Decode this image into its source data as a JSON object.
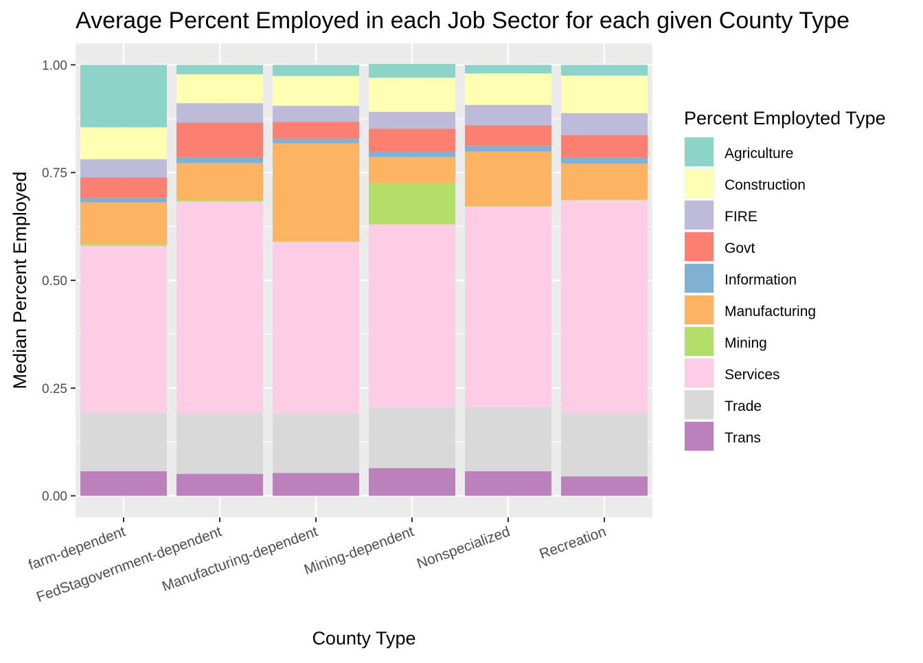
{
  "chart_data": {
    "type": "bar",
    "stacked": true,
    "title": "Average Percent Employed in each Job Sector for each given County Type",
    "xlabel": "County Type",
    "ylabel": "Median Percent Employed",
    "ylim": [
      -0.05,
      1.05
    ],
    "yticks": [
      0.0,
      0.25,
      0.5,
      0.75,
      1.0
    ],
    "ytick_labels": [
      "0.00",
      "0.25",
      "0.50",
      "0.75",
      "1.00"
    ],
    "categories": [
      "farm-dependent",
      "FedStagovernment-dependent",
      "Manufacturing-dependent",
      "Mining-dependent",
      "Nonspecialized",
      "Recreation"
    ],
    "grid": true,
    "legend": {
      "title": "Percent Employted Type",
      "position": "right"
    },
    "series": [
      {
        "name": "Agriculture",
        "color": "#8DD3C7",
        "values": [
          0.145,
          0.022,
          0.026,
          0.032,
          0.02,
          0.025
        ]
      },
      {
        "name": "Construction",
        "color": "#FFFFB3",
        "values": [
          0.074,
          0.067,
          0.069,
          0.079,
          0.073,
          0.087
        ]
      },
      {
        "name": "FIRE",
        "color": "#BEBADA",
        "values": [
          0.042,
          0.045,
          0.037,
          0.039,
          0.047,
          0.051
        ]
      },
      {
        "name": "Govt",
        "color": "#FB8072",
        "values": [
          0.048,
          0.08,
          0.039,
          0.054,
          0.048,
          0.052
        ]
      },
      {
        "name": "Information",
        "color": "#80B1D3",
        "values": [
          0.01,
          0.014,
          0.011,
          0.012,
          0.013,
          0.014
        ]
      },
      {
        "name": "Manufacturing",
        "color": "#FDB462",
        "values": [
          0.097,
          0.086,
          0.227,
          0.061,
          0.127,
          0.083
        ]
      },
      {
        "name": "Mining",
        "color": "#B3DE69",
        "values": [
          0.004,
          0.003,
          0.002,
          0.095,
          0.001,
          0.002
        ]
      },
      {
        "name": "Services",
        "color": "#FCCDE5",
        "values": [
          0.387,
          0.491,
          0.397,
          0.425,
          0.465,
          0.494
        ]
      },
      {
        "name": "Trade",
        "color": "#D9D9D9",
        "values": [
          0.136,
          0.141,
          0.139,
          0.141,
          0.149,
          0.147
        ]
      },
      {
        "name": "Trans",
        "color": "#BC80BD",
        "values": [
          0.057,
          0.051,
          0.053,
          0.064,
          0.057,
          0.045
        ]
      }
    ]
  }
}
